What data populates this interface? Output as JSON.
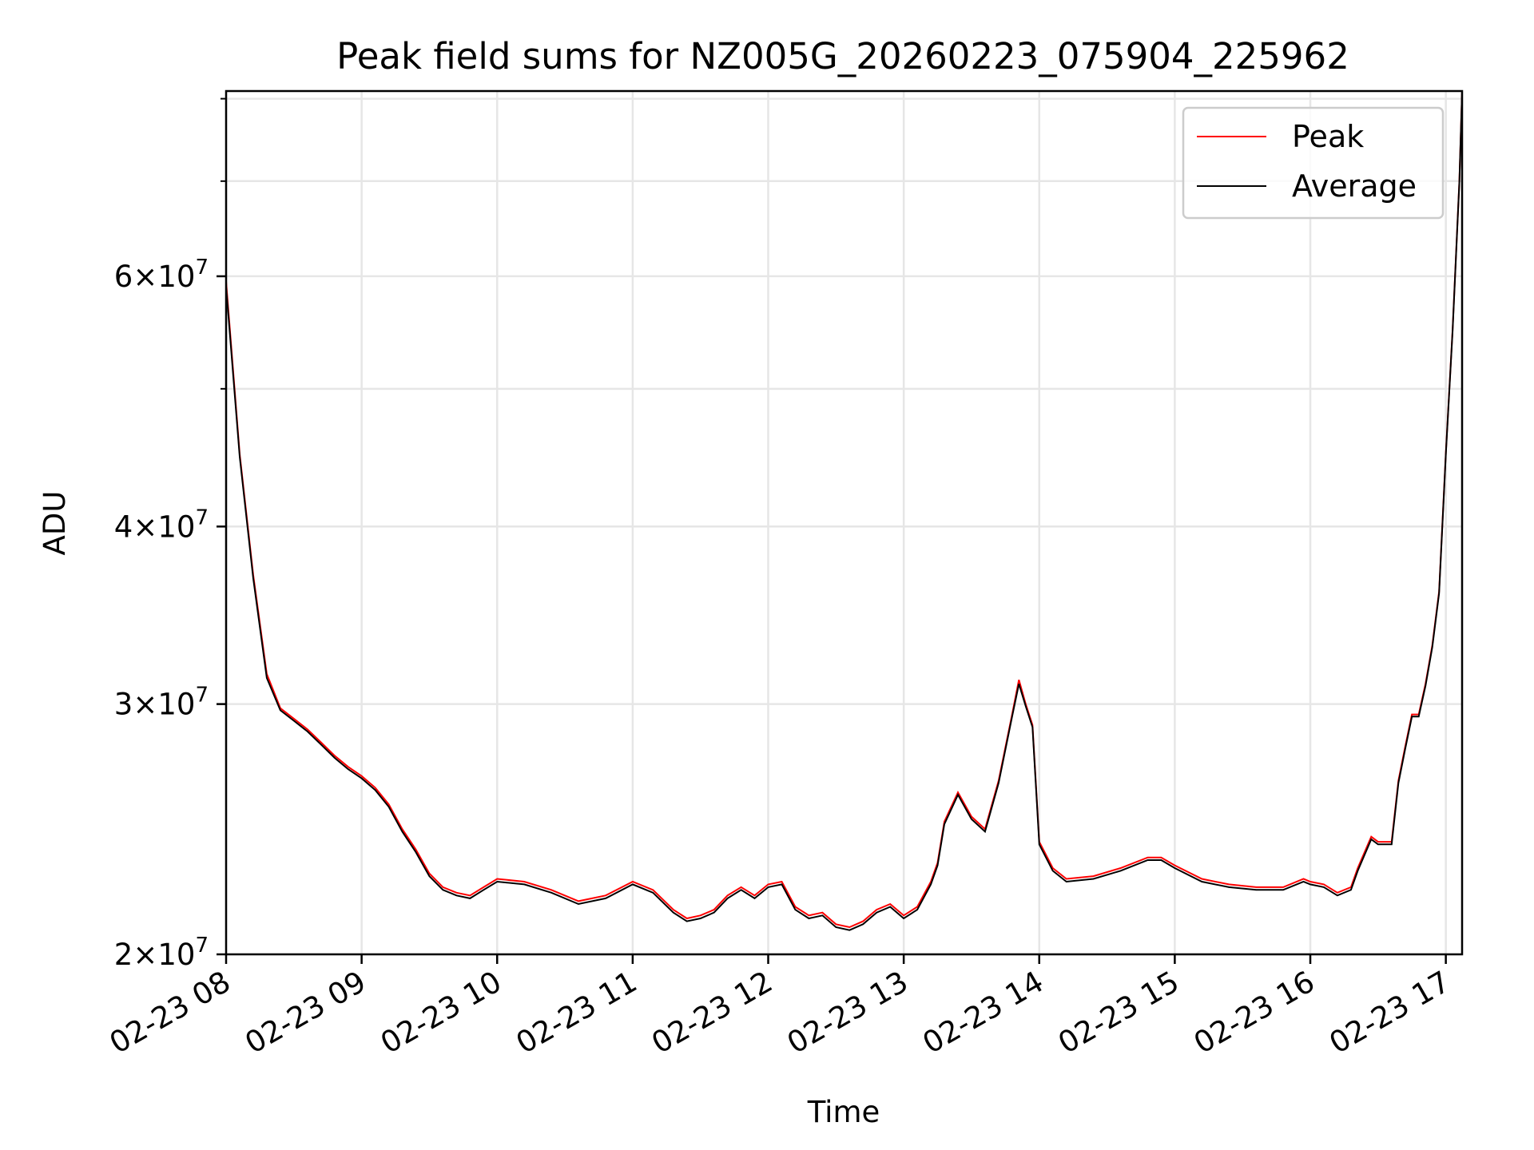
{
  "chart_data": {
    "type": "line",
    "title": "Peak field sums for NZ005G_20260223_075904_225962",
    "xlabel": "Time",
    "ylabel": "ADU",
    "x_ticks": [
      "02-23 08",
      "02-23 09",
      "02-23 10",
      "02-23 11",
      "02-23 12",
      "02-23 13",
      "02-23 14",
      "02-23 15",
      "02-23 16",
      "02-23 17"
    ],
    "x_tick_hours": [
      8,
      9,
      10,
      11,
      12,
      13,
      14,
      15,
      16,
      17
    ],
    "xlim_hours": [
      8.0,
      17.12
    ],
    "y_scale": "log",
    "ylim": [
      20000000,
      81000000
    ],
    "y_ticks": [
      {
        "value": 20000000,
        "mantissa": "2",
        "base": "10",
        "exp": "7"
      },
      {
        "value": 30000000,
        "mantissa": "3",
        "base": "10",
        "exp": "7"
      },
      {
        "value": 40000000,
        "mantissa": "4",
        "base": "10",
        "exp": "7"
      },
      {
        "value": 60000000,
        "mantissa": "6",
        "base": "10",
        "exp": "7"
      }
    ],
    "y_minor_ticks": [
      50000000,
      70000000,
      80000000
    ],
    "grid": true,
    "legend_position": "top-right",
    "series": [
      {
        "name": "Peak",
        "color": "#ff0000"
      },
      {
        "name": "Average",
        "color": "#000000"
      }
    ],
    "x_hours": [
      8.0,
      8.1,
      8.2,
      8.3,
      8.4,
      8.5,
      8.6,
      8.7,
      8.8,
      8.9,
      9.0,
      9.1,
      9.2,
      9.3,
      9.4,
      9.5,
      9.6,
      9.7,
      9.8,
      9.9,
      10.0,
      10.2,
      10.4,
      10.6,
      10.8,
      11.0,
      11.15,
      11.3,
      11.4,
      11.5,
      11.6,
      11.7,
      11.8,
      11.9,
      12.0,
      12.1,
      12.2,
      12.3,
      12.4,
      12.5,
      12.6,
      12.7,
      12.8,
      12.9,
      13.0,
      13.1,
      13.2,
      13.25,
      13.3,
      13.4,
      13.5,
      13.6,
      13.7,
      13.8,
      13.85,
      13.9,
      13.95,
      14.0,
      14.1,
      14.2,
      14.4,
      14.6,
      14.8,
      14.9,
      15.0,
      15.2,
      15.4,
      15.6,
      15.8,
      15.95,
      16.0,
      16.1,
      16.2,
      16.3,
      16.35,
      16.45,
      16.5,
      16.6,
      16.65,
      16.7,
      16.75,
      16.8,
      16.85,
      16.9,
      16.95,
      17.0,
      17.05,
      17.1,
      17.12
    ],
    "values_peak": [
      59500000,
      45000000,
      37000000,
      31500000,
      29800000,
      29300000,
      28800000,
      28200000,
      27600000,
      27100000,
      26700000,
      26200000,
      25500000,
      24500000,
      23700000,
      22800000,
      22300000,
      22100000,
      22000000,
      22300000,
      22600000,
      22500000,
      22200000,
      21800000,
      22000000,
      22500000,
      22200000,
      21500000,
      21200000,
      21300000,
      21500000,
      22000000,
      22300000,
      22000000,
      22400000,
      22500000,
      21600000,
      21300000,
      21400000,
      21000000,
      20900000,
      21100000,
      21500000,
      21700000,
      21300000,
      21600000,
      22500000,
      23200000,
      24800000,
      26000000,
      25000000,
      24500000,
      26500000,
      29500000,
      31200000,
      30000000,
      29000000,
      24000000,
      23000000,
      22600000,
      22700000,
      23000000,
      23400000,
      23400000,
      23100000,
      22600000,
      22400000,
      22300000,
      22300000,
      22600000,
      22500000,
      22400000,
      22100000,
      22300000,
      23000000,
      24200000,
      24000000,
      24000000,
      26500000,
      28000000,
      29500000,
      29500000,
      31000000,
      33000000,
      36000000,
      45000000,
      55000000,
      70000000,
      81000000
    ],
    "values_average": [
      59000000,
      44800000,
      36800000,
      31300000,
      29700000,
      29200000,
      28700000,
      28100000,
      27500000,
      27000000,
      26600000,
      26100000,
      25400000,
      24400000,
      23600000,
      22700000,
      22200000,
      22000000,
      21900000,
      22200000,
      22500000,
      22400000,
      22100000,
      21700000,
      21900000,
      22400000,
      22100000,
      21400000,
      21100000,
      21200000,
      21400000,
      21900000,
      22200000,
      21900000,
      22300000,
      22400000,
      21500000,
      21200000,
      21300000,
      20900000,
      20800000,
      21000000,
      21400000,
      21600000,
      21200000,
      21500000,
      22400000,
      23100000,
      24700000,
      25900000,
      24900000,
      24400000,
      26400000,
      29400000,
      31000000,
      29900000,
      28900000,
      23900000,
      22900000,
      22500000,
      22600000,
      22900000,
      23300000,
      23300000,
      23000000,
      22500000,
      22300000,
      22200000,
      22200000,
      22500000,
      22400000,
      22300000,
      22000000,
      22200000,
      22900000,
      24100000,
      23900000,
      23900000,
      26400000,
      27900000,
      29400000,
      29400000,
      30900000,
      32900000,
      35900000,
      44900000,
      54900000,
      69900000,
      81000000
    ]
  }
}
